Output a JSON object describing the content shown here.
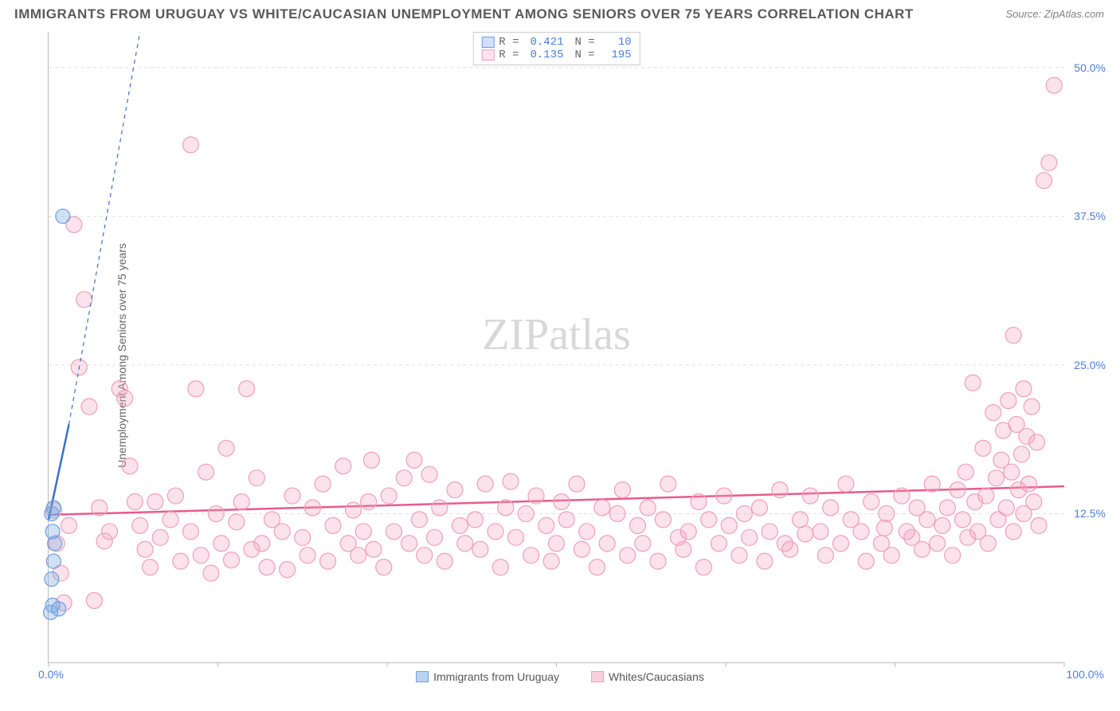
{
  "title": "IMMIGRANTS FROM URUGUAY VS WHITE/CAUCASIAN UNEMPLOYMENT AMONG SENIORS OVER 75 YEARS CORRELATION CHART",
  "source": "Source: ZipAtlas.com",
  "watermark_a": "ZIP",
  "watermark_b": "atlas",
  "ylabel": "Unemployment Among Seniors over 75 years",
  "x_min_label": "0.0%",
  "x_max_label": "100.0%",
  "chart": {
    "type": "scatter",
    "xlim": [
      0,
      100
    ],
    "ylim": [
      0,
      53
    ],
    "ytick_labels": [
      "12.5%",
      "25.0%",
      "37.5%",
      "50.0%"
    ],
    "ytick_values": [
      12.5,
      25.0,
      37.5,
      50.0
    ],
    "x_tick_marks": [
      0,
      16.67,
      33.33,
      50,
      66.67,
      83.33,
      100
    ],
    "background_color": "#ffffff",
    "grid_color": "#e0e0e0",
    "series": [
      {
        "name": "Immigrants from Uruguay",
        "R": "0.421",
        "N": "10",
        "fill": "rgba(120,170,230,0.35)",
        "stroke": "#6fa0de",
        "line_color": "#3a6fc9",
        "marker_radius": 9,
        "trend": {
          "x1": 0,
          "y1": 12.0,
          "x2": 2.0,
          "y2": 20.0,
          "dash_x2": 9.0,
          "dash_y2": 53
        },
        "points": [
          {
            "x": 0.2,
            "y": 4.2
          },
          {
            "x": 0.4,
            "y": 4.8
          },
          {
            "x": 1.0,
            "y": 4.5
          },
          {
            "x": 0.3,
            "y": 7.0
          },
          {
            "x": 0.5,
            "y": 8.5
          },
          {
            "x": 0.6,
            "y": 10.0
          },
          {
            "x": 0.4,
            "y": 11.0
          },
          {
            "x": 0.3,
            "y": 12.5
          },
          {
            "x": 0.5,
            "y": 13.0
          },
          {
            "x": 1.4,
            "y": 37.5
          }
        ]
      },
      {
        "name": "Whites/Caucasians",
        "R": "0.135",
        "N": "195",
        "fill": "rgba(245,160,190,0.30)",
        "stroke": "#ef9fb9",
        "line_color": "#e75b8d",
        "marker_radius": 10,
        "trend": {
          "x1": 0,
          "y1": 12.4,
          "x2": 100,
          "y2": 14.8
        },
        "points": [
          {
            "x": 2.5,
            "y": 36.8
          },
          {
            "x": 3.0,
            "y": 24.8
          },
          {
            "x": 4.0,
            "y": 21.5
          },
          {
            "x": 4.5,
            "y": 5.2
          },
          {
            "x": 5.0,
            "y": 13.0
          },
          {
            "x": 5.5,
            "y": 10.2
          },
          {
            "x": 6.0,
            "y": 11.0
          },
          {
            "x": 7.0,
            "y": 23.0
          },
          {
            "x": 7.5,
            "y": 22.2
          },
          {
            "x": 8.0,
            "y": 16.5
          },
          {
            "x": 8.5,
            "y": 13.5
          },
          {
            "x": 9.0,
            "y": 11.5
          },
          {
            "x": 9.5,
            "y": 9.5
          },
          {
            "x": 10.0,
            "y": 8.0
          },
          {
            "x": 10.5,
            "y": 13.5
          },
          {
            "x": 11.0,
            "y": 10.5
          },
          {
            "x": 12.0,
            "y": 12.0
          },
          {
            "x": 12.5,
            "y": 14.0
          },
          {
            "x": 13.0,
            "y": 8.5
          },
          {
            "x": 14.0,
            "y": 11.0
          },
          {
            "x": 14.5,
            "y": 23.0
          },
          {
            "x": 15.0,
            "y": 9.0
          },
          {
            "x": 15.5,
            "y": 16.0
          },
          {
            "x": 16.0,
            "y": 7.5
          },
          {
            "x": 16.5,
            "y": 12.5
          },
          {
            "x": 17.0,
            "y": 10.0
          },
          {
            "x": 17.5,
            "y": 18.0
          },
          {
            "x": 18.0,
            "y": 8.6
          },
          {
            "x": 18.5,
            "y": 11.8
          },
          {
            "x": 19.0,
            "y": 13.5
          },
          {
            "x": 20.0,
            "y": 9.5
          },
          {
            "x": 20.5,
            "y": 15.5
          },
          {
            "x": 21.0,
            "y": 10.0
          },
          {
            "x": 21.5,
            "y": 8.0
          },
          {
            "x": 22.0,
            "y": 12.0
          },
          {
            "x": 23.0,
            "y": 11.0
          },
          {
            "x": 23.5,
            "y": 7.8
          },
          {
            "x": 24.0,
            "y": 14.0
          },
          {
            "x": 25.0,
            "y": 10.5
          },
          {
            "x": 25.5,
            "y": 9.0
          },
          {
            "x": 26.0,
            "y": 13.0
          },
          {
            "x": 27.0,
            "y": 15.0
          },
          {
            "x": 27.5,
            "y": 8.5
          },
          {
            "x": 28.0,
            "y": 11.5
          },
          {
            "x": 29.0,
            "y": 16.5
          },
          {
            "x": 29.5,
            "y": 10.0
          },
          {
            "x": 30.0,
            "y": 12.8
          },
          {
            "x": 30.5,
            "y": 9.0
          },
          {
            "x": 31.0,
            "y": 11.0
          },
          {
            "x": 31.5,
            "y": 13.5
          },
          {
            "x": 32.0,
            "y": 9.5
          },
          {
            "x": 33.0,
            "y": 8.0
          },
          {
            "x": 33.5,
            "y": 14.0
          },
          {
            "x": 34.0,
            "y": 11.0
          },
          {
            "x": 35.0,
            "y": 15.5
          },
          {
            "x": 35.5,
            "y": 10.0
          },
          {
            "x": 36.0,
            "y": 17.0
          },
          {
            "x": 36.5,
            "y": 12.0
          },
          {
            "x": 37.0,
            "y": 9.0
          },
          {
            "x": 38.0,
            "y": 10.5
          },
          {
            "x": 38.5,
            "y": 13.0
          },
          {
            "x": 39.0,
            "y": 8.5
          },
          {
            "x": 40.0,
            "y": 14.5
          },
          {
            "x": 40.5,
            "y": 11.5
          },
          {
            "x": 41.0,
            "y": 10.0
          },
          {
            "x": 42.0,
            "y": 12.0
          },
          {
            "x": 42.5,
            "y": 9.5
          },
          {
            "x": 43.0,
            "y": 15.0
          },
          {
            "x": 44.0,
            "y": 11.0
          },
          {
            "x": 44.5,
            "y": 8.0
          },
          {
            "x": 45.0,
            "y": 13.0
          },
          {
            "x": 45.5,
            "y": 15.2
          },
          {
            "x": 46.0,
            "y": 10.5
          },
          {
            "x": 47.0,
            "y": 12.5
          },
          {
            "x": 47.5,
            "y": 9.0
          },
          {
            "x": 48.0,
            "y": 14.0
          },
          {
            "x": 49.0,
            "y": 11.5
          },
          {
            "x": 49.5,
            "y": 8.5
          },
          {
            "x": 50.0,
            "y": 10.0
          },
          {
            "x": 50.5,
            "y": 13.5
          },
          {
            "x": 51.0,
            "y": 12.0
          },
          {
            "x": 52.0,
            "y": 15.0
          },
          {
            "x": 52.5,
            "y": 9.5
          },
          {
            "x": 53.0,
            "y": 11.0
          },
          {
            "x": 54.0,
            "y": 8.0
          },
          {
            "x": 54.5,
            "y": 13.0
          },
          {
            "x": 55.0,
            "y": 10.0
          },
          {
            "x": 56.0,
            "y": 12.5
          },
          {
            "x": 56.5,
            "y": 14.5
          },
          {
            "x": 57.0,
            "y": 9.0
          },
          {
            "x": 58.0,
            "y": 11.5
          },
          {
            "x": 58.5,
            "y": 10.0
          },
          {
            "x": 59.0,
            "y": 13.0
          },
          {
            "x": 60.0,
            "y": 8.5
          },
          {
            "x": 60.5,
            "y": 12.0
          },
          {
            "x": 61.0,
            "y": 15.0
          },
          {
            "x": 62.0,
            "y": 10.5
          },
          {
            "x": 62.5,
            "y": 9.5
          },
          {
            "x": 63.0,
            "y": 11.0
          },
          {
            "x": 64.0,
            "y": 13.5
          },
          {
            "x": 64.5,
            "y": 8.0
          },
          {
            "x": 65.0,
            "y": 12.0
          },
          {
            "x": 66.0,
            "y": 10.0
          },
          {
            "x": 66.5,
            "y": 14.0
          },
          {
            "x": 67.0,
            "y": 11.5
          },
          {
            "x": 68.0,
            "y": 9.0
          },
          {
            "x": 68.5,
            "y": 12.5
          },
          {
            "x": 69.0,
            "y": 10.5
          },
          {
            "x": 70.0,
            "y": 13.0
          },
          {
            "x": 70.5,
            "y": 8.5
          },
          {
            "x": 71.0,
            "y": 11.0
          },
          {
            "x": 72.0,
            "y": 14.5
          },
          {
            "x": 72.5,
            "y": 10.0
          },
          {
            "x": 73.0,
            "y": 9.5
          },
          {
            "x": 74.0,
            "y": 12.0
          },
          {
            "x": 74.5,
            "y": 10.8
          },
          {
            "x": 75.0,
            "y": 14.0
          },
          {
            "x": 76.0,
            "y": 11.0
          },
          {
            "x": 76.5,
            "y": 9.0
          },
          {
            "x": 77.0,
            "y": 13.0
          },
          {
            "x": 78.0,
            "y": 10.0
          },
          {
            "x": 78.5,
            "y": 15.0
          },
          {
            "x": 79.0,
            "y": 12.0
          },
          {
            "x": 80.0,
            "y": 11.0
          },
          {
            "x": 80.5,
            "y": 8.5
          },
          {
            "x": 81.0,
            "y": 13.5
          },
          {
            "x": 82.0,
            "y": 10.0
          },
          {
            "x": 82.3,
            "y": 11.3
          },
          {
            "x": 82.5,
            "y": 12.5
          },
          {
            "x": 83.0,
            "y": 9.0
          },
          {
            "x": 84.0,
            "y": 14.0
          },
          {
            "x": 84.5,
            "y": 11.0
          },
          {
            "x": 85.0,
            "y": 10.5
          },
          {
            "x": 85.5,
            "y": 13.0
          },
          {
            "x": 86.0,
            "y": 9.5
          },
          {
            "x": 86.5,
            "y": 12.0
          },
          {
            "x": 87.0,
            "y": 15.0
          },
          {
            "x": 87.5,
            "y": 10.0
          },
          {
            "x": 88.0,
            "y": 11.5
          },
          {
            "x": 88.5,
            "y": 13.0
          },
          {
            "x": 89.0,
            "y": 9.0
          },
          {
            "x": 89.5,
            "y": 14.5
          },
          {
            "x": 90.0,
            "y": 12.0
          },
          {
            "x": 90.3,
            "y": 16.0
          },
          {
            "x": 90.5,
            "y": 10.5
          },
          {
            "x": 91.0,
            "y": 23.5
          },
          {
            "x": 91.2,
            "y": 13.5
          },
          {
            "x": 91.5,
            "y": 11.0
          },
          {
            "x": 92.0,
            "y": 18.0
          },
          {
            "x": 92.3,
            "y": 14.0
          },
          {
            "x": 92.5,
            "y": 10.0
          },
          {
            "x": 93.0,
            "y": 21.0
          },
          {
            "x": 93.3,
            "y": 15.5
          },
          {
            "x": 93.5,
            "y": 12.0
          },
          {
            "x": 93.8,
            "y": 17.0
          },
          {
            "x": 94.0,
            "y": 19.5
          },
          {
            "x": 94.3,
            "y": 13.0
          },
          {
            "x": 94.5,
            "y": 22.0
          },
          {
            "x": 94.8,
            "y": 16.0
          },
          {
            "x": 95.0,
            "y": 11.0
          },
          {
            "x": 95.0,
            "y": 27.5
          },
          {
            "x": 95.3,
            "y": 20.0
          },
          {
            "x": 95.5,
            "y": 14.5
          },
          {
            "x": 95.8,
            "y": 17.5
          },
          {
            "x": 96.0,
            "y": 12.5
          },
          {
            "x": 96.0,
            "y": 23.0
          },
          {
            "x": 96.3,
            "y": 19.0
          },
          {
            "x": 96.5,
            "y": 15.0
          },
          {
            "x": 96.8,
            "y": 21.5
          },
          {
            "x": 97.0,
            "y": 13.5
          },
          {
            "x": 97.3,
            "y": 18.5
          },
          {
            "x": 97.5,
            "y": 11.5
          },
          {
            "x": 98.0,
            "y": 40.5
          },
          {
            "x": 98.5,
            "y": 42.0
          },
          {
            "x": 99.0,
            "y": 48.5
          },
          {
            "x": 3.5,
            "y": 30.5
          },
          {
            "x": 14.0,
            "y": 43.5
          },
          {
            "x": 0.5,
            "y": 12.8
          },
          {
            "x": 0.8,
            "y": 10.0
          },
          {
            "x": 1.2,
            "y": 7.5
          },
          {
            "x": 1.5,
            "y": 5.0
          },
          {
            "x": 2.0,
            "y": 11.5
          },
          {
            "x": 19.5,
            "y": 23.0
          },
          {
            "x": 31.8,
            "y": 17.0
          },
          {
            "x": 37.5,
            "y": 15.8
          }
        ]
      }
    ]
  },
  "legend_top": {
    "r_label": "R =",
    "n_label": "N ="
  },
  "legend_bottom": [
    {
      "label": "Immigrants from Uruguay",
      "fill": "rgba(120,170,230,0.5)",
      "stroke": "#6fa0de"
    },
    {
      "label": "Whites/Caucasians",
      "fill": "rgba(245,160,190,0.5)",
      "stroke": "#ef9fb9"
    }
  ]
}
